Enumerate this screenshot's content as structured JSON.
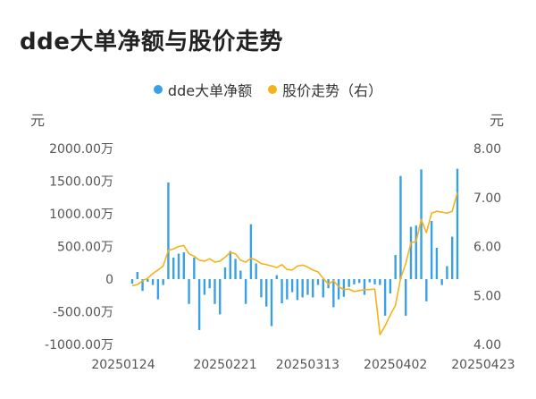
{
  "title": "dde大单净额与股价走势",
  "colors": {
    "bar": "#3aa0e6",
    "line": "#f5b21a",
    "text": "#555555",
    "title": "#222222"
  },
  "chart_data": {
    "type": "bar+line",
    "title": "dde大单净额与股价走势",
    "legend": {
      "position": "top-center",
      "items": [
        "dde大单净额",
        "股价走势（右）"
      ]
    },
    "y_left": {
      "unit": "元",
      "ylim": [
        -1000,
        2000
      ],
      "ticks": [
        2000,
        1500,
        1000,
        500,
        0,
        -500,
        -1000
      ],
      "tick_labels": [
        "2000.00万",
        "1500.00万",
        "1000.00万",
        "500.00万",
        "0",
        "-500.00万",
        "-1000.00万"
      ]
    },
    "y_right": {
      "unit": "元",
      "ylim": [
        4,
        8
      ],
      "ticks": [
        8,
        7,
        6,
        5,
        4
      ],
      "tick_labels": [
        "8.00",
        "7.00",
        "6.00",
        "5.00",
        "4.00"
      ]
    },
    "x_tick_labels": [
      {
        "index": 0,
        "label": "20250124"
      },
      {
        "index": 18,
        "label": "20250221"
      },
      {
        "index": 34,
        "label": "20250313"
      },
      {
        "index": 51,
        "label": "20250402"
      },
      {
        "index": 68,
        "label": "20250423"
      }
    ],
    "series": [
      {
        "name": "dde大单净额",
        "type": "bar",
        "axis": "left",
        "values": [
          -70,
          110,
          -180,
          -40,
          -90,
          -310,
          -90,
          1480,
          330,
          390,
          410,
          -380,
          330,
          -780,
          -240,
          -140,
          -380,
          -540,
          180,
          430,
          310,
          130,
          -380,
          840,
          240,
          -280,
          -420,
          -720,
          60,
          -370,
          -310,
          -200,
          -320,
          -280,
          -240,
          -280,
          -90,
          -280,
          -140,
          -430,
          -310,
          -270,
          -120,
          -80,
          -60,
          -240,
          -50,
          -80,
          -90,
          -560,
          -220,
          370,
          1580,
          -560,
          800,
          820,
          1680,
          -340,
          890,
          480,
          -90,
          200,
          650,
          1690
        ]
      },
      {
        "name": "股价走势（右）",
        "type": "line",
        "axis": "right",
        "values": [
          5.2,
          5.22,
          5.3,
          5.35,
          5.45,
          5.52,
          5.6,
          5.92,
          5.95,
          6.0,
          6.02,
          5.85,
          5.8,
          5.72,
          5.7,
          5.75,
          5.68,
          5.7,
          5.78,
          5.88,
          5.85,
          5.72,
          5.68,
          5.76,
          5.72,
          5.65,
          5.63,
          5.6,
          5.57,
          5.63,
          5.53,
          5.52,
          5.6,
          5.62,
          5.58,
          5.52,
          5.48,
          5.35,
          5.23,
          5.3,
          5.18,
          5.12,
          5.13,
          5.08,
          5.1,
          5.12,
          5.12,
          5.13,
          4.2,
          4.38,
          4.6,
          4.8,
          5.35,
          5.65,
          6.08,
          6.1,
          6.55,
          6.28,
          6.68,
          6.72,
          6.7,
          6.68,
          6.72,
          7.1
        ]
      }
    ]
  }
}
